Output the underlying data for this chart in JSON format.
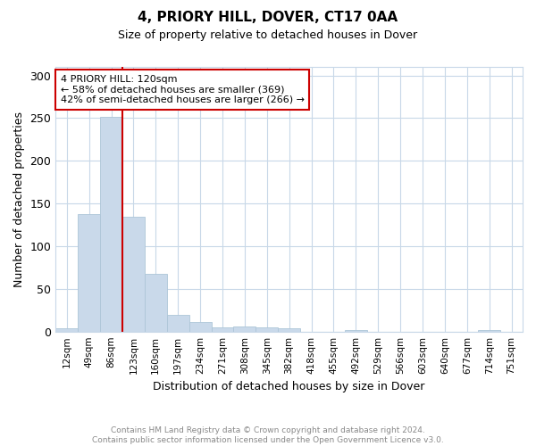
{
  "title": "4, PRIORY HILL, DOVER, CT17 0AA",
  "subtitle": "Size of property relative to detached houses in Dover",
  "xlabel": "Distribution of detached houses by size in Dover",
  "ylabel": "Number of detached properties",
  "footnote1": "Contains HM Land Registry data © Crown copyright and database right 2024.",
  "footnote2": "Contains public sector information licensed under the Open Government Licence v3.0.",
  "bin_labels": [
    "12sqm",
    "49sqm",
    "86sqm",
    "123sqm",
    "160sqm",
    "197sqm",
    "234sqm",
    "271sqm",
    "308sqm",
    "345sqm",
    "382sqm",
    "418sqm",
    "455sqm",
    "492sqm",
    "529sqm",
    "566sqm",
    "603sqm",
    "640sqm",
    "677sqm",
    "714sqm",
    "751sqm"
  ],
  "bar_values": [
    4,
    138,
    251,
    134,
    68,
    19,
    11,
    5,
    6,
    5,
    4,
    0,
    0,
    2,
    0,
    0,
    0,
    0,
    0,
    2,
    0
  ],
  "bar_color": "#c9d9ea",
  "bar_edgecolor": "#aec6d8",
  "vline_color": "#cc0000",
  "annotation_text": "4 PRIORY HILL: 120sqm\n← 58% of detached houses are smaller (369)\n42% of semi-detached houses are larger (266) →",
  "annotation_box_color": "#ffffff",
  "annotation_box_edgecolor": "#cc0000",
  "ylim": [
    0,
    310
  ],
  "yticks": [
    0,
    50,
    100,
    150,
    200,
    250,
    300
  ],
  "background_color": "#ffffff",
  "grid_color": "#c8d8e8"
}
